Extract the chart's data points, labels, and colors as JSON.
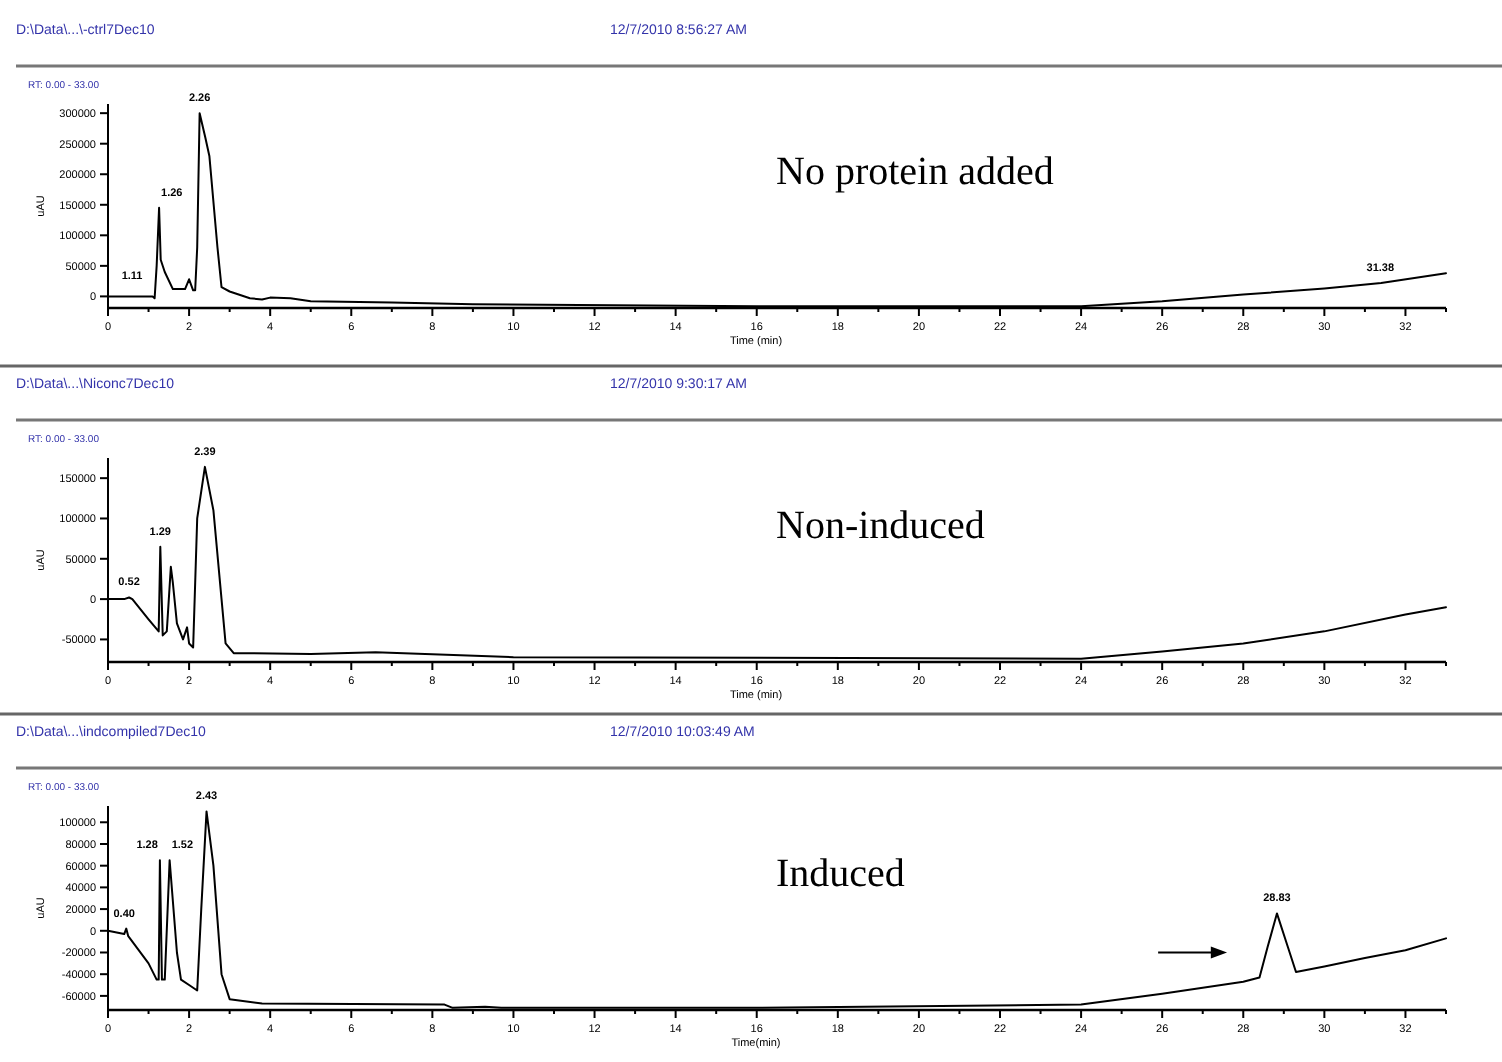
{
  "chart_data": [
    {
      "type": "line",
      "title": "D:\\Data\\...\\-ctrl7Dec10",
      "subtitle": "12/7/2010 8:56:27 AM",
      "xlabel": "Time (min)",
      "ylabel": "uAU",
      "annotations": [
        "RT: 0.00 - 33.00",
        "No protein added",
        {
          "text": "1.11",
          "x": 0.9,
          "y": 9000
        },
        {
          "text": "1.26",
          "x": 1.26,
          "y": 145000
        },
        {
          "text": "2.26",
          "x": 2.26,
          "y": 300000
        },
        {
          "text": "31.38",
          "x": 31.38,
          "y": 22000
        }
      ],
      "xlim": [
        0,
        33
      ],
      "xticks": [
        0,
        {
          "value": 1,
          "label": null
        },
        2,
        {
          "value": 3,
          "label": null
        },
        4,
        {
          "value": 5,
          "label": null
        },
        6,
        {
          "value": 7,
          "label": null
        },
        8,
        {
          "value": 9,
          "label": null
        },
        10,
        {
          "value": 11,
          "label": null
        },
        12,
        {
          "value": 13,
          "label": null
        },
        14,
        {
          "value": 15,
          "label": null
        },
        16,
        {
          "value": 17,
          "label": null
        },
        18,
        {
          "value": 19,
          "label": null
        },
        20,
        {
          "value": 21,
          "label": null
        },
        22,
        {
          "value": 23,
          "label": null
        },
        24,
        {
          "value": 25,
          "label": null
        },
        26,
        {
          "value": 27,
          "label": null
        },
        28,
        {
          "value": 29,
          "label": null
        },
        30,
        {
          "value": 31,
          "label": null
        },
        32,
        {
          "value": 33,
          "label": null
        }
      ],
      "ylim": [
        -19000,
        315000
      ],
      "yticks": [
        0,
        50000,
        100000,
        150000,
        200000,
        250000,
        300000
      ],
      "grid": false,
      "series": [
        {
          "color": "#000000",
          "x": [
            0,
            1.1,
            1.15,
            1.2,
            1.26,
            1.3,
            1.4,
            1.6,
            1.9,
            2.0,
            2.1,
            2.15,
            2.2,
            2.26,
            2.4,
            2.5,
            2.7,
            2.8,
            3.0,
            3.5,
            3.8,
            4.0,
            4.5,
            5,
            7,
            9,
            16,
            24,
            26,
            28,
            30,
            31.4,
            33
          ],
          "values": [
            0,
            0,
            -3000,
            50000,
            145000,
            60000,
            40000,
            12000,
            12000,
            28000,
            10000,
            10000,
            80000,
            300000,
            260000,
            230000,
            80000,
            15000,
            8000,
            -3000,
            -5000,
            -2000,
            -3000,
            -8000,
            -10000,
            -13000,
            -16000,
            -16000,
            -8000,
            3000,
            13000,
            22000,
            38000
          ]
        }
      ]
    },
    {
      "type": "line",
      "title": "D:\\Data\\...\\Niconc7Dec10",
      "subtitle": "12/7/2010 9:30:17 AM",
      "xlabel": "Time (min)",
      "ylabel": "uAU",
      "annotations": [
        "RT: 0.00 - 33.00",
        "Non-induced",
        {
          "text": "0.52",
          "x": 0.52,
          "y": 2000
        },
        {
          "text": "1.29",
          "x": 1.29,
          "y": 65000
        },
        {
          "text": "2.39",
          "x": 2.39,
          "y": 164000
        }
      ],
      "xlim": [
        0,
        33
      ],
      "xticks": [
        0,
        {
          "value": 1,
          "label": null
        },
        2,
        {
          "value": 3,
          "label": null
        },
        4,
        {
          "value": 5,
          "label": null
        },
        6,
        {
          "value": 7,
          "label": null
        },
        8,
        {
          "value": 9,
          "label": null
        },
        10,
        {
          "value": 11,
          "label": null
        },
        12,
        {
          "value": 13,
          "label": null
        },
        14,
        {
          "value": 15,
          "label": null
        },
        16,
        {
          "value": 17,
          "label": null
        },
        18,
        {
          "value": 19,
          "label": null
        },
        20,
        {
          "value": 21,
          "label": null
        },
        22,
        {
          "value": 23,
          "label": null
        },
        24,
        {
          "value": 25,
          "label": null
        },
        26,
        {
          "value": 27,
          "label": null
        },
        28,
        {
          "value": 29,
          "label": null
        },
        30,
        {
          "value": 31,
          "label": null
        },
        32,
        {
          "value": 33,
          "label": null
        }
      ],
      "ylim": [
        -78000,
        175000
      ],
      "yticks": [
        -50000,
        0,
        50000,
        100000,
        150000
      ],
      "grid": false,
      "series": [
        {
          "color": "#000000",
          "x": [
            0,
            0.4,
            0.52,
            0.6,
            1.0,
            1.25,
            1.29,
            1.35,
            1.45,
            1.55,
            1.6,
            1.7,
            1.85,
            1.95,
            2.0,
            2.1,
            2.2,
            2.39,
            2.6,
            2.8,
            2.9,
            3.1,
            5,
            6.6,
            10,
            24,
            26,
            28,
            30,
            32,
            33
          ],
          "values": [
            0,
            0,
            2000,
            0,
            -25000,
            -40000,
            65000,
            -45000,
            -40000,
            40000,
            20000,
            -30000,
            -50000,
            -35000,
            -55000,
            -60000,
            100000,
            164000,
            110000,
            0,
            -55000,
            -67000,
            -68000,
            -66000,
            -72000,
            -74000,
            -65000,
            -55000,
            -40000,
            -19000,
            -10000
          ]
        }
      ]
    },
    {
      "type": "line",
      "title": "D:\\Data\\...\\indcompiled7Dec10",
      "subtitle": "12/7/2010 10:03:49 AM",
      "xlabel": "Time(min)",
      "ylabel": "uAU",
      "annotations": [
        "RT: 0.00 - 33.00",
        "Induced",
        {
          "text": "0.40",
          "x": 0.4,
          "y": 2000
        },
        {
          "text": "1.28",
          "x": 1.28,
          "y": 65000
        },
        {
          "text": "1.52",
          "x": 1.52,
          "y": 65000
        },
        {
          "text": "2.43",
          "x": 2.43,
          "y": 110000
        },
        {
          "text": "28.83",
          "x": 28.83,
          "y": 16000
        }
      ],
      "xlim": [
        0,
        33
      ],
      "xticks": [
        0,
        {
          "value": 1,
          "label": null
        },
        2,
        {
          "value": 3,
          "label": null
        },
        4,
        {
          "value": 5,
          "label": null
        },
        6,
        {
          "value": 7,
          "label": null
        },
        8,
        {
          "value": 9,
          "label": null
        },
        10,
        {
          "value": 11,
          "label": null
        },
        12,
        {
          "value": 13,
          "label": null
        },
        14,
        {
          "value": 15,
          "label": null
        },
        16,
        {
          "value": 17,
          "label": null
        },
        18,
        {
          "value": 19,
          "label": null
        },
        20,
        {
          "value": 21,
          "label": null
        },
        22,
        {
          "value": 23,
          "label": null
        },
        24,
        {
          "value": 25,
          "label": null
        },
        26,
        {
          "value": 27,
          "label": null
        },
        28,
        {
          "value": 29,
          "label": null
        },
        30,
        {
          "value": 31,
          "label": null
        },
        32,
        {
          "value": 33,
          "label": null
        }
      ],
      "ylim": [
        -73000,
        115000
      ],
      "yticks": [
        -60000,
        -40000,
        -20000,
        0,
        20000,
        40000,
        60000,
        80000,
        100000
      ],
      "grid": false,
      "series": [
        {
          "color": "#000000",
          "x": [
            0,
            0.4,
            0.45,
            0.5,
            1.0,
            1.2,
            1.25,
            1.28,
            1.33,
            1.4,
            1.52,
            1.7,
            1.8,
            2.0,
            2.2,
            2.3,
            2.43,
            2.6,
            2.8,
            3.0,
            3.8,
            8.3,
            8.5,
            9.3,
            9.7,
            16,
            24,
            26,
            28,
            28.4,
            28.6,
            28.83,
            29.1,
            29.3,
            30,
            31,
            32,
            33
          ],
          "values": [
            0,
            -3000,
            2000,
            -5000,
            -30000,
            -45000,
            -45000,
            65000,
            -45000,
            -45000,
            65000,
            -20000,
            -45000,
            -50000,
            -55000,
            20000,
            110000,
            60000,
            -40000,
            -63000,
            -67000,
            -68000,
            -71000,
            -70000,
            -71000,
            -71000,
            -68000,
            -58000,
            -47000,
            -43000,
            -15000,
            16000,
            -15000,
            -38000,
            -33000,
            -25000,
            -18000,
            -7000
          ]
        }
      ]
    }
  ]
}
